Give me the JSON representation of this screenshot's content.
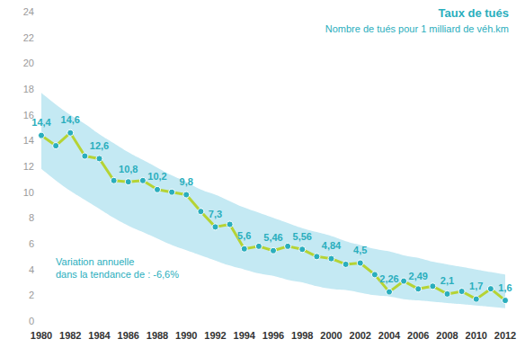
{
  "chart_data": {
    "type": "line",
    "title": "Taux de tués",
    "subtitle": "Nombre de tués pour 1 milliard de véh.km",
    "annotation": "Variation annuelle\ndans la tendance de : -6,6%",
    "categories": [
      "1980",
      null,
      "1982",
      null,
      "1984",
      null,
      "1986",
      null,
      "1988",
      null,
      "1990",
      null,
      "1992",
      null,
      "1994",
      null,
      "1996",
      null,
      "1998",
      null,
      "2000",
      null,
      "2002",
      null,
      "2004",
      null,
      "2006",
      null,
      "2008",
      null,
      "2010",
      null,
      "2012"
    ],
    "values": [
      14.4,
      13.6,
      14.6,
      12.8,
      12.6,
      10.9,
      10.8,
      10.9,
      10.2,
      10.0,
      9.8,
      8.5,
      7.3,
      7.5,
      5.6,
      5.8,
      5.46,
      5.8,
      5.56,
      5.0,
      4.84,
      4.4,
      4.5,
      3.6,
      2.26,
      3.1,
      2.49,
      2.7,
      2.1,
      2.3,
      1.7,
      2.5,
      1.6
    ],
    "value_labels": [
      "14,4",
      null,
      "14,6",
      null,
      "12,6",
      null,
      "10,8",
      null,
      "10,2",
      null,
      "9,8",
      null,
      "7,3",
      null,
      "5,6",
      null,
      "5,46",
      null,
      "5,56",
      null,
      "4,84",
      null,
      "4,5",
      null,
      "2,26",
      null,
      "2,49",
      null,
      "2,1",
      null,
      "1,7",
      null,
      "1,6"
    ],
    "color": "#b5d334",
    "marker": "circle",
    "data_labels": true,
    "grid": false,
    "ylim": [
      0,
      24
    ],
    "yticks": [
      0,
      2,
      4,
      6,
      8,
      10,
      12,
      14,
      16,
      18,
      20,
      22,
      24
    ],
    "trend_band": {
      "upper": [
        17.7,
        16.8,
        16.0,
        15.3,
        14.5,
        13.8,
        13.1,
        12.5,
        11.9,
        11.3,
        10.8,
        10.2,
        9.8,
        9.3,
        8.8,
        8.4,
        8.0,
        7.6,
        7.2,
        6.9,
        6.6,
        6.2,
        5.9,
        5.6,
        5.4,
        5.1,
        4.9,
        4.6,
        4.4,
        4.2,
        4.0,
        3.8,
        3.6
      ],
      "lower": [
        11.8,
        10.9,
        10.1,
        9.4,
        8.7,
        8.0,
        7.4,
        6.9,
        6.4,
        5.9,
        5.5,
        5.1,
        4.7,
        4.3,
        4.0,
        3.7,
        3.5,
        3.2,
        3.0,
        2.7,
        2.5,
        2.4,
        2.2,
        2.0,
        1.9,
        1.7,
        1.6,
        1.5,
        1.4,
        1.3,
        1.2,
        1.1,
        1.0
      ],
      "color": "#c4e9f3"
    }
  }
}
